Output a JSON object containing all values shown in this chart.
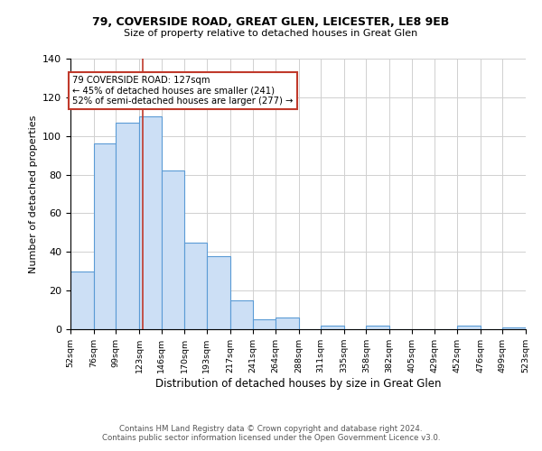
{
  "title1": "79, COVERSIDE ROAD, GREAT GLEN, LEICESTER, LE8 9EB",
  "title2": "Size of property relative to detached houses in Great Glen",
  "xlabel": "Distribution of detached houses by size in Great Glen",
  "ylabel": "Number of detached properties",
  "bin_edges": [
    52,
    76,
    99,
    123,
    146,
    170,
    193,
    217,
    241,
    264,
    288,
    311,
    335,
    358,
    382,
    405,
    429,
    452,
    476,
    499,
    523
  ],
  "bar_heights": [
    30,
    96,
    107,
    110,
    82,
    45,
    38,
    15,
    5,
    6,
    0,
    2,
    0,
    2,
    0,
    0,
    0,
    2,
    0,
    1
  ],
  "bar_color": "#ccdff5",
  "bar_edge_color": "#5b9bd5",
  "bar_edge_width": 0.8,
  "reference_line_x": 127,
  "reference_line_color": "#c0392b",
  "ylim": [
    0,
    140
  ],
  "yticks": [
    0,
    20,
    40,
    60,
    80,
    100,
    120,
    140
  ],
  "annotation_text": "79 COVERSIDE ROAD: 127sqm\n← 45% of detached houses are smaller (241)\n52% of semi-detached houses are larger (277) →",
  "annotation_box_color": "white",
  "annotation_box_edge_color": "#c0392b",
  "footer_text": "Contains HM Land Registry data © Crown copyright and database right 2024.\nContains public sector information licensed under the Open Government Licence v3.0.",
  "background_color": "white",
  "grid_color": "#d0d0d0"
}
